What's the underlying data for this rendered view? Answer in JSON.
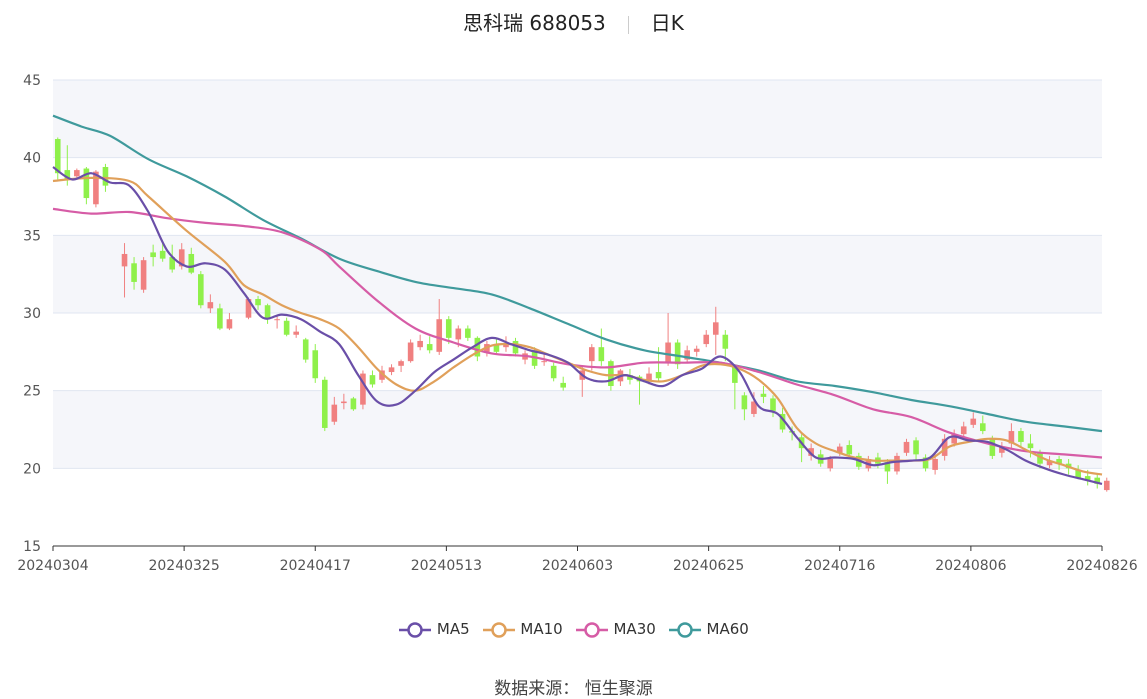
{
  "header": {
    "title": "思科瑞 688053",
    "period": "日K"
  },
  "source": {
    "label": "数据来源：",
    "name": "恒生聚源"
  },
  "chart_data": {
    "type": "candlestick",
    "ylim": [
      15,
      45
    ],
    "yticks": [
      15,
      20,
      25,
      30,
      35,
      40,
      45
    ],
    "xticks": [
      "20240304",
      "20240325",
      "20240417",
      "20240513",
      "20240603",
      "20240625",
      "20240716",
      "20240806",
      "20240826"
    ],
    "grid": true,
    "legend_position": "bottom",
    "colors": {
      "up": "#f08080",
      "down": "#8ff04a",
      "band": "#f5f6fa"
    },
    "series": [
      {
        "name": "MA5",
        "color": "#6a4fa8"
      },
      {
        "name": "MA10",
        "color": "#e0a05a"
      },
      {
        "name": "MA30",
        "color": "#d65ca6"
      },
      {
        "name": "MA60",
        "color": "#3f9a9c"
      }
    ],
    "ma": {
      "MA5": [
        [
          0,
          39.4
        ],
        [
          2,
          38.6
        ],
        [
          4,
          39.0
        ],
        [
          6,
          38.4
        ],
        [
          8,
          38.2
        ],
        [
          10,
          36.5
        ],
        [
          12,
          34.0
        ],
        [
          14,
          33.0
        ],
        [
          16,
          33.2
        ],
        [
          18,
          32.8
        ],
        [
          20,
          31.3
        ],
        [
          22,
          29.7
        ],
        [
          24,
          29.9
        ],
        [
          26,
          29.6
        ],
        [
          28,
          28.8
        ],
        [
          30,
          28.0
        ],
        [
          32,
          26.0
        ],
        [
          34,
          24.3
        ],
        [
          36,
          24.1
        ],
        [
          38,
          25.0
        ],
        [
          40,
          26.2
        ],
        [
          42,
          27.0
        ],
        [
          44,
          27.8
        ],
        [
          46,
          28.4
        ],
        [
          48,
          28.0
        ],
        [
          50,
          27.6
        ],
        [
          52,
          27.3
        ],
        [
          54,
          26.8
        ],
        [
          56,
          25.8
        ],
        [
          58,
          25.6
        ],
        [
          60,
          26.0
        ],
        [
          62,
          25.6
        ],
        [
          64,
          25.3
        ],
        [
          66,
          26.0
        ],
        [
          68,
          26.4
        ],
        [
          70,
          27.2
        ],
        [
          72,
          26.2
        ],
        [
          74,
          24.0
        ],
        [
          76,
          23.5
        ],
        [
          78,
          22.0
        ],
        [
          80,
          20.7
        ],
        [
          82,
          20.7
        ],
        [
          84,
          20.6
        ],
        [
          86,
          20.2
        ],
        [
          88,
          20.4
        ],
        [
          90,
          20.5
        ],
        [
          92,
          20.7
        ],
        [
          94,
          22.0
        ],
        [
          96,
          21.8
        ],
        [
          98,
          21.7
        ],
        [
          100,
          21.2
        ],
        [
          102,
          20.5
        ],
        [
          104,
          20.0
        ],
        [
          106,
          19.6
        ],
        [
          108,
          19.3
        ],
        [
          110,
          19.0
        ]
      ],
      "MA10": [
        [
          0,
          38.5
        ],
        [
          4,
          38.7
        ],
        [
          8,
          38.5
        ],
        [
          10,
          37.5
        ],
        [
          14,
          35.3
        ],
        [
          18,
          33.3
        ],
        [
          20,
          31.8
        ],
        [
          22,
          31.2
        ],
        [
          24,
          30.5
        ],
        [
          26,
          30.0
        ],
        [
          28,
          29.6
        ],
        [
          30,
          29.0
        ],
        [
          32,
          27.8
        ],
        [
          34,
          26.4
        ],
        [
          36,
          25.4
        ],
        [
          38,
          25.0
        ],
        [
          40,
          25.6
        ],
        [
          42,
          26.5
        ],
        [
          44,
          27.3
        ],
        [
          46,
          27.9
        ],
        [
          48,
          28.0
        ],
        [
          50,
          27.8
        ],
        [
          52,
          27.3
        ],
        [
          54,
          26.8
        ],
        [
          56,
          26.3
        ],
        [
          58,
          26.0
        ],
        [
          60,
          26.0
        ],
        [
          62,
          25.7
        ],
        [
          64,
          25.6
        ],
        [
          66,
          26.0
        ],
        [
          68,
          26.6
        ],
        [
          70,
          26.7
        ],
        [
          72,
          26.4
        ],
        [
          74,
          25.7
        ],
        [
          76,
          24.5
        ],
        [
          78,
          22.6
        ],
        [
          80,
          21.6
        ],
        [
          82,
          21.1
        ],
        [
          84,
          20.7
        ],
        [
          86,
          20.5
        ],
        [
          88,
          20.5
        ],
        [
          90,
          20.5
        ],
        [
          92,
          20.6
        ],
        [
          94,
          21.4
        ],
        [
          96,
          21.7
        ],
        [
          98,
          21.9
        ],
        [
          100,
          21.8
        ],
        [
          102,
          21.2
        ],
        [
          104,
          20.6
        ],
        [
          106,
          20.2
        ],
        [
          108,
          19.8
        ],
        [
          110,
          19.6
        ]
      ],
      "MA30": [
        [
          0,
          36.7
        ],
        [
          4,
          36.4
        ],
        [
          8,
          36.5
        ],
        [
          12,
          36.1
        ],
        [
          16,
          35.8
        ],
        [
          20,
          35.6
        ],
        [
          24,
          35.2
        ],
        [
          28,
          34.1
        ],
        [
          30,
          33.0
        ],
        [
          34,
          30.8
        ],
        [
          38,
          29.0
        ],
        [
          42,
          28.1
        ],
        [
          46,
          27.4
        ],
        [
          50,
          27.2
        ],
        [
          54,
          26.7
        ],
        [
          58,
          26.5
        ],
        [
          62,
          26.8
        ],
        [
          66,
          26.8
        ],
        [
          70,
          26.8
        ],
        [
          74,
          26.2
        ],
        [
          78,
          25.4
        ],
        [
          82,
          24.7
        ],
        [
          86,
          23.8
        ],
        [
          90,
          23.3
        ],
        [
          94,
          22.3
        ],
        [
          98,
          21.6
        ],
        [
          102,
          21.1
        ],
        [
          106,
          20.9
        ],
        [
          110,
          20.7
        ]
      ],
      "MA60": [
        [
          0,
          42.7
        ],
        [
          3,
          42.0
        ],
        [
          6,
          41.4
        ],
        [
          10,
          39.9
        ],
        [
          14,
          38.8
        ],
        [
          18,
          37.5
        ],
        [
          22,
          36.0
        ],
        [
          26,
          34.8
        ],
        [
          30,
          33.5
        ],
        [
          34,
          32.7
        ],
        [
          38,
          32.0
        ],
        [
          42,
          31.6
        ],
        [
          46,
          31.2
        ],
        [
          50,
          30.3
        ],
        [
          54,
          29.3
        ],
        [
          58,
          28.3
        ],
        [
          62,
          27.6
        ],
        [
          66,
          27.2
        ],
        [
          70,
          26.8
        ],
        [
          74,
          26.3
        ],
        [
          78,
          25.6
        ],
        [
          82,
          25.3
        ],
        [
          86,
          24.9
        ],
        [
          90,
          24.4
        ],
        [
          94,
          24.0
        ],
        [
          98,
          23.5
        ],
        [
          102,
          23.0
        ],
        [
          106,
          22.7
        ],
        [
          110,
          22.4
        ]
      ]
    },
    "candles": [
      [
        0,
        41.2,
        39.0,
        41.3,
        38.6
      ],
      [
        1,
        39.2,
        38.6,
        40.8,
        38.2
      ],
      [
        2,
        38.8,
        39.2,
        39.3,
        38.6
      ],
      [
        3,
        39.3,
        37.4,
        39.4,
        37.0
      ],
      [
        4,
        37.0,
        39.1,
        39.2,
        36.8
      ],
      [
        5,
        39.4,
        38.2,
        39.6,
        37.8
      ],
      [
        7,
        33.0,
        33.8,
        34.5,
        31.0
      ],
      [
        8,
        33.2,
        32.0,
        33.6,
        31.5
      ],
      [
        9,
        31.5,
        33.4,
        33.6,
        31.3
      ],
      [
        10,
        33.9,
        33.6,
        34.4,
        33.0
      ],
      [
        11,
        34.0,
        33.5,
        34.5,
        33.3
      ],
      [
        12,
        33.6,
        32.8,
        34.4,
        32.6
      ],
      [
        13,
        33.0,
        34.1,
        34.5,
        32.8
      ],
      [
        14,
        33.8,
        32.6,
        34.2,
        32.5
      ],
      [
        15,
        32.5,
        30.5,
        32.7,
        30.3
      ],
      [
        16,
        30.3,
        30.7,
        31.2,
        30.0
      ],
      [
        17,
        30.3,
        29.0,
        30.6,
        28.9
      ],
      [
        18,
        29.0,
        29.6,
        30.0,
        28.9
      ],
      [
        20,
        29.7,
        30.9,
        31.0,
        29.6
      ],
      [
        21,
        30.9,
        30.5,
        31.1,
        30.2
      ],
      [
        22,
        30.5,
        29.6,
        30.6,
        29.3
      ],
      [
        23,
        29.6,
        29.6,
        29.9,
        29.0
      ],
      [
        24,
        29.5,
        28.6,
        29.7,
        28.5
      ],
      [
        25,
        28.6,
        28.8,
        29.2,
        28.4
      ],
      [
        26,
        28.3,
        27.0,
        28.4,
        26.8
      ],
      [
        27,
        27.6,
        25.8,
        28.0,
        25.5
      ],
      [
        28,
        25.7,
        22.6,
        25.9,
        22.4
      ],
      [
        29,
        23.0,
        24.1,
        24.6,
        22.8
      ],
      [
        30,
        24.2,
        24.3,
        24.8,
        23.8
      ],
      [
        31,
        24.5,
        23.8,
        24.6,
        23.7
      ],
      [
        32,
        24.1,
        26.1,
        26.3,
        23.8
      ],
      [
        33,
        26.0,
        25.4,
        26.3,
        25.2
      ],
      [
        34,
        25.7,
        26.3,
        26.6,
        25.5
      ],
      [
        35,
        26.2,
        26.5,
        26.7,
        26.0
      ],
      [
        36,
        26.6,
        26.9,
        27.0,
        26.2
      ],
      [
        37,
        26.9,
        28.1,
        28.3,
        26.8
      ],
      [
        38,
        27.8,
        28.2,
        28.6,
        27.6
      ],
      [
        39,
        28.0,
        27.6,
        28.5,
        27.4
      ],
      [
        40,
        27.5,
        29.6,
        30.9,
        27.3
      ],
      [
        41,
        29.6,
        28.4,
        29.8,
        28.0
      ],
      [
        42,
        28.3,
        29.0,
        29.2,
        27.8
      ],
      [
        43,
        29.0,
        28.4,
        29.2,
        28.2
      ],
      [
        44,
        28.4,
        27.2,
        28.5,
        26.9
      ],
      [
        45,
        27.5,
        28.0,
        28.2,
        27.2
      ],
      [
        46,
        28.0,
        27.5,
        28.3,
        27.4
      ],
      [
        47,
        27.8,
        28.0,
        28.5,
        27.5
      ],
      [
        48,
        28.2,
        27.4,
        28.4,
        27.2
      ],
      [
        49,
        27.0,
        27.4,
        27.6,
        26.7
      ],
      [
        50,
        27.6,
        26.6,
        27.8,
        26.4
      ],
      [
        51,
        26.9,
        26.9,
        27.4,
        26.6
      ],
      [
        52,
        26.6,
        25.8,
        26.8,
        25.6
      ],
      [
        53,
        25.5,
        25.2,
        25.9,
        25.0
      ],
      [
        55,
        25.7,
        26.3,
        26.6,
        24.6
      ],
      [
        56,
        26.9,
        27.8,
        28.0,
        26.3
      ],
      [
        57,
        27.8,
        26.9,
        29.0,
        26.6
      ],
      [
        58,
        26.9,
        25.3,
        27.0,
        25.0
      ],
      [
        59,
        25.6,
        26.3,
        26.4,
        25.3
      ],
      [
        60,
        26.0,
        25.7,
        26.4,
        25.4
      ],
      [
        61,
        25.9,
        25.6,
        26.0,
        24.1
      ],
      [
        62,
        25.6,
        26.1,
        26.5,
        25.4
      ],
      [
        63,
        26.2,
        25.8,
        27.8,
        25.6
      ],
      [
        64,
        26.8,
        28.1,
        30.0,
        26.6
      ],
      [
        65,
        28.1,
        26.7,
        28.3,
        26.4
      ],
      [
        66,
        27.0,
        27.6,
        27.9,
        26.8
      ],
      [
        67,
        27.5,
        27.7,
        27.9,
        27.2
      ],
      [
        68,
        28.0,
        28.6,
        28.9,
        27.8
      ],
      [
        69,
        28.6,
        29.4,
        30.4,
        27.3
      ],
      [
        70,
        28.6,
        27.7,
        28.9,
        26.9
      ],
      [
        71,
        26.5,
        25.5,
        26.7,
        23.8
      ],
      [
        72,
        24.7,
        23.8,
        24.9,
        23.1
      ],
      [
        73,
        23.5,
        24.3,
        24.9,
        23.3
      ],
      [
        74,
        24.8,
        24.6,
        25.3,
        24.2
      ],
      [
        75,
        24.5,
        23.7,
        24.7,
        23.3
      ],
      [
        76,
        23.5,
        22.5,
        23.9,
        22.3
      ],
      [
        77,
        22.4,
        22.3,
        22.7,
        21.8
      ],
      [
        78,
        22.0,
        21.3,
        22.2,
        20.4
      ],
      [
        79,
        20.8,
        21.3,
        21.6,
        20.5
      ],
      [
        80,
        20.9,
        20.3,
        21.2,
        20.1
      ],
      [
        81,
        20.0,
        20.6,
        20.8,
        19.8
      ],
      [
        82,
        21.0,
        21.4,
        21.6,
        20.8
      ],
      [
        83,
        21.5,
        20.9,
        21.8,
        20.7
      ],
      [
        84,
        20.8,
        20.1,
        21.0,
        19.9
      ],
      [
        85,
        20.0,
        20.6,
        20.8,
        19.8
      ],
      [
        86,
        20.7,
        20.3,
        21.0,
        20.0
      ],
      [
        87,
        20.4,
        19.8,
        20.6,
        19.0
      ],
      [
        88,
        19.8,
        20.8,
        21.0,
        19.6
      ],
      [
        89,
        21.0,
        21.7,
        21.9,
        20.8
      ],
      [
        90,
        21.8,
        20.9,
        22.0,
        20.5
      ],
      [
        91,
        20.7,
        20.0,
        20.9,
        19.8
      ],
      [
        92,
        19.9,
        20.6,
        20.9,
        19.6
      ],
      [
        93,
        20.8,
        21.9,
        22.2,
        20.5
      ],
      [
        94,
        21.6,
        22.2,
        22.5,
        21.4
      ],
      [
        95,
        22.2,
        22.7,
        23.0,
        21.9
      ],
      [
        96,
        22.8,
        23.2,
        23.6,
        22.6
      ],
      [
        97,
        22.9,
        22.4,
        23.4,
        22.2
      ],
      [
        98,
        21.9,
        20.8,
        22.1,
        20.6
      ],
      [
        99,
        21.0,
        21.4,
        21.7,
        20.7
      ],
      [
        100,
        21.6,
        22.4,
        22.9,
        21.3
      ],
      [
        101,
        22.4,
        21.7,
        22.6,
        21.4
      ],
      [
        102,
        21.6,
        21.3,
        22.2,
        20.7
      ],
      [
        103,
        21.0,
        20.3,
        21.2,
        20.0
      ],
      [
        104,
        20.2,
        20.5,
        20.8,
        20.0
      ],
      [
        105,
        20.6,
        20.3,
        20.8,
        19.9
      ],
      [
        106,
        20.3,
        20.0,
        20.6,
        19.6
      ],
      [
        107,
        19.9,
        19.4,
        20.2,
        19.3
      ],
      [
        108,
        19.5,
        19.2,
        19.9,
        18.9
      ],
      [
        109,
        19.4,
        19.0,
        19.7,
        18.7
      ],
      [
        110,
        18.6,
        19.2,
        19.4,
        18.5
      ]
    ]
  }
}
